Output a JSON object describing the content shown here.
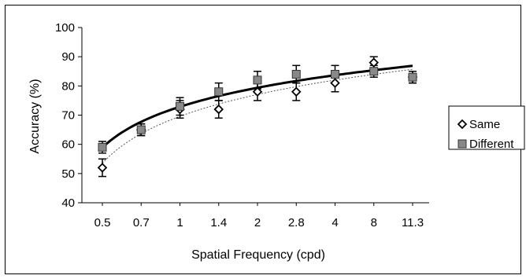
{
  "chart_data": {
    "type": "line",
    "x_tick_labels": [
      "0.5",
      "0.7",
      "1",
      "1.4",
      "2",
      "2.8",
      "4",
      "8",
      "11.3"
    ],
    "xlabel": "Spatial Frequency (cpd)",
    "ylabel": "Accuracy (%)",
    "ylim": [
      40,
      100
    ],
    "y_ticks": [
      40,
      50,
      60,
      70,
      80,
      90,
      100
    ],
    "legend_position": "right",
    "series": [
      {
        "name": "Same",
        "marker": "open-diamond",
        "color": "#000000",
        "values": [
          52,
          65,
          72,
          72,
          78,
          78,
          81,
          88,
          83
        ],
        "error": [
          3,
          2,
          3,
          3,
          3,
          3,
          3,
          2,
          2
        ],
        "fit_line": "thin-dotted"
      },
      {
        "name": "Different",
        "marker": "gray-square",
        "color": "#888888",
        "values": [
          59,
          65,
          73,
          78,
          82,
          84,
          84,
          85,
          83
        ],
        "error": [
          2,
          2,
          3,
          3,
          3,
          3,
          3,
          2,
          2
        ],
        "fit_line": "thick-solid"
      }
    ],
    "grid": false
  }
}
